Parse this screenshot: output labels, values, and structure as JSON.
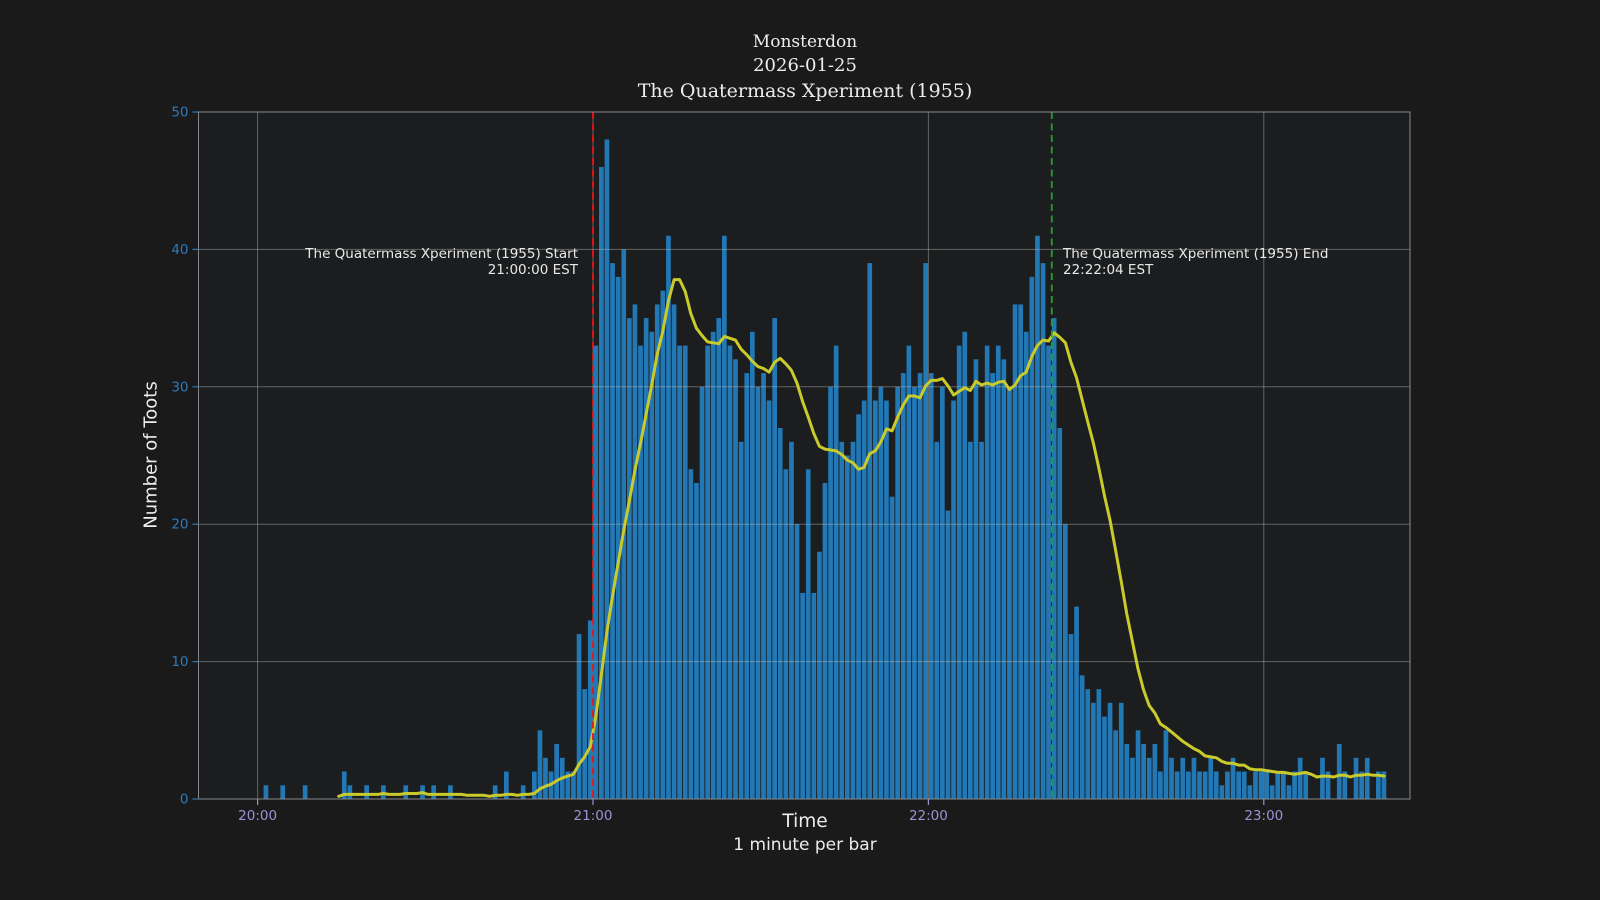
{
  "title": {
    "line1": "Monsterdon",
    "line2": "2026-01-25",
    "line3": "The Quatermass Xperiment (1955)"
  },
  "annotations": {
    "start": {
      "line1": "The Quatermass Xperiment (1955) Start",
      "line2": "21:00:00 EST"
    },
    "end": {
      "line1": "The Quatermass Xperiment (1955) End",
      "line2": "22:22:04 EST"
    }
  },
  "axes": {
    "ylabel": "Number of Toots",
    "xlabel": "Time",
    "xlabel2": "1 minute per bar"
  },
  "colors": {
    "background": "#1a1a1a",
    "plot_background": "#1b1d1e",
    "bar": "#2277b5",
    "line": "#c9ca2b",
    "start_line": "#ef1313",
    "end_line": "#22a12d",
    "grid": "#bbbbbb",
    "spine": "#85898d",
    "y_tick": "#2f7ab8",
    "x_tick": "#9b93d4",
    "text": "#ececec"
  },
  "chart_data": {
    "type": "bar",
    "title": "Monsterdon 2026-01-25 The Quatermass Xperiment (1955)",
    "xlabel": "Time (1 minute per bar)",
    "ylabel": "Number of Toots",
    "ylim": [
      0,
      50
    ],
    "grid": true,
    "x_start": "20:00",
    "x_end": "23:21",
    "minutes_per_bar": 1,
    "x_tick_labels": [
      "20:00",
      "21:00",
      "22:00",
      "23:00"
    ],
    "x_tick_minutes": [
      0,
      60,
      120,
      180
    ],
    "y_tick_values": [
      0,
      10,
      20,
      30,
      40,
      50
    ],
    "values": [
      0,
      1,
      0,
      0,
      1,
      0,
      0,
      0,
      1,
      0,
      0,
      0,
      0,
      0,
      0,
      2,
      1,
      0,
      0,
      1,
      0,
      0,
      1,
      0,
      0,
      0,
      1,
      0,
      0,
      1,
      0,
      1,
      0,
      0,
      1,
      0,
      0,
      0,
      0,
      0,
      0,
      0,
      1,
      0,
      2,
      0,
      0,
      1,
      0,
      2,
      5,
      3,
      2,
      4,
      3,
      2,
      2,
      12,
      8,
      13,
      33,
      46,
      48,
      39,
      38,
      40,
      35,
      36,
      33,
      35,
      34,
      36,
      37,
      41,
      36,
      33,
      33,
      24,
      23,
      30,
      33,
      34,
      35,
      41,
      33,
      32,
      26,
      31,
      34,
      30,
      31,
      29,
      35,
      27,
      24,
      26,
      20,
      15,
      24,
      15,
      18,
      23,
      30,
      33,
      26,
      25,
      26,
      28,
      29,
      39,
      29,
      30,
      29,
      22,
      30,
      31,
      33,
      30,
      31,
      39,
      31,
      26,
      30,
      21,
      29,
      33,
      34,
      26,
      32,
      26,
      33,
      31,
      33,
      32,
      30,
      36,
      36,
      34,
      38,
      41,
      39,
      33,
      35,
      27,
      20,
      12,
      14,
      9,
      8,
      7,
      8,
      6,
      7,
      5,
      7,
      4,
      3,
      5,
      4,
      3,
      4,
      2,
      5,
      3,
      2,
      3,
      2,
      3,
      2,
      2,
      3,
      2,
      1,
      2,
      3,
      2,
      2,
      1,
      2,
      2,
      2,
      1,
      2,
      2,
      1,
      2,
      3,
      2,
      0,
      0,
      3,
      2,
      0,
      4,
      2,
      0,
      3,
      2,
      3,
      0,
      2,
      2
    ],
    "line_series": {
      "name": "rolling-mean-toots",
      "mode": "trailing_mean",
      "window_minutes": 15
    },
    "event_lines": [
      {
        "name": "start",
        "label": "The Quatermass Xperiment (1955) Start",
        "time": "21:00:00 EST",
        "minutes_from_start": 60,
        "style": "dashed"
      },
      {
        "name": "end",
        "label": "The Quatermass Xperiment (1955) End",
        "time": "22:22:04 EST",
        "minutes_from_start": 142.07,
        "style": "dashed"
      }
    ]
  }
}
